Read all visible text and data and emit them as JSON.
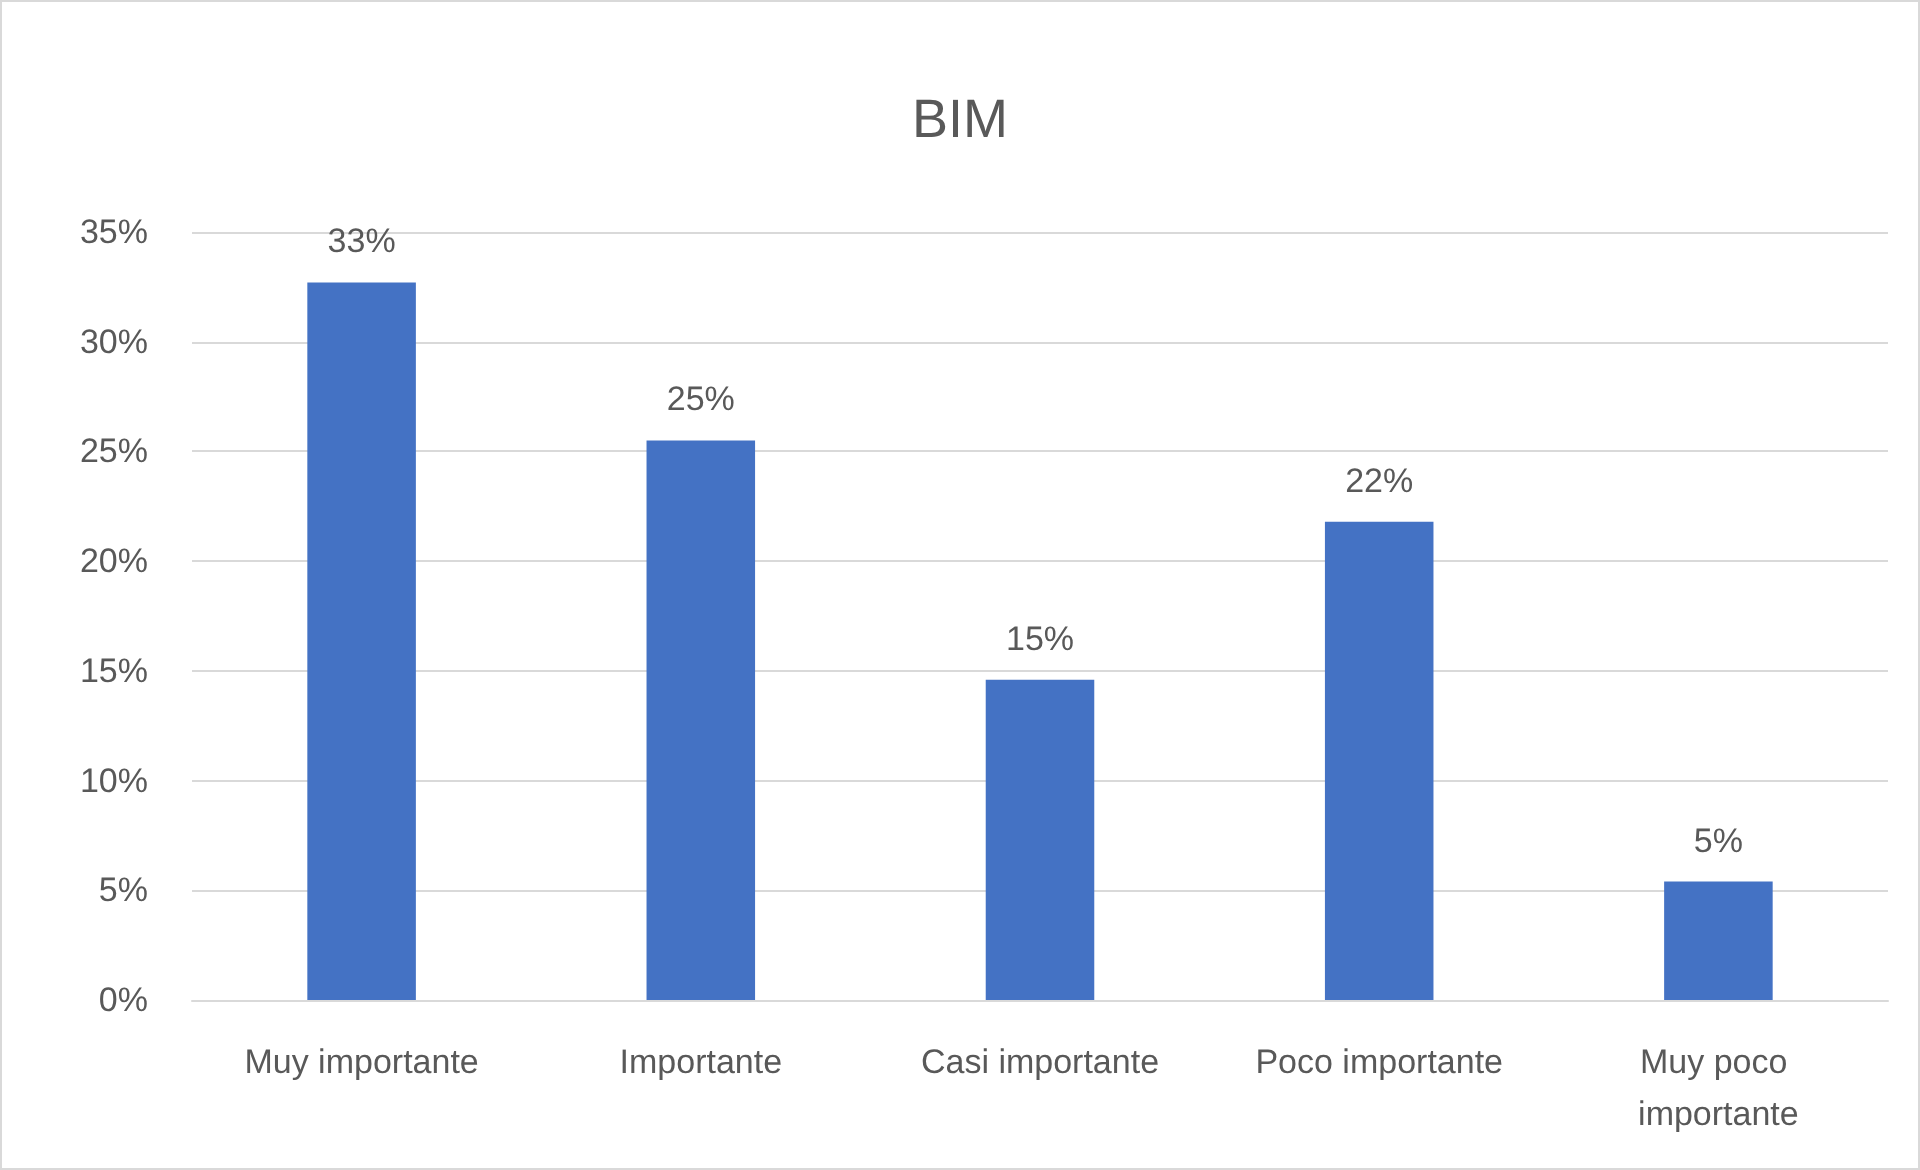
{
  "chart_data": {
    "type": "bar",
    "title": "BIM",
    "categories": [
      "Muy importante",
      "Importante",
      "Casi importante",
      "Poco importante",
      "Muy poco importante"
    ],
    "values": [
      32.7,
      25.5,
      14.6,
      21.8,
      5.4
    ],
    "value_labels": [
      "33%",
      "25%",
      "15%",
      "22%",
      "5%"
    ],
    "color": "#4472c4",
    "ylim": [
      0,
      35
    ],
    "yticks": [
      {
        "value": 0,
        "label": "0%"
      },
      {
        "value": 5,
        "label": "5%"
      },
      {
        "value": 10,
        "label": "10%"
      },
      {
        "value": 15,
        "label": "15%"
      },
      {
        "value": 20,
        "label": "20%"
      },
      {
        "value": 25,
        "label": "25%"
      },
      {
        "value": 30,
        "label": "30%"
      },
      {
        "value": 35,
        "label": "35%"
      }
    ],
    "grid": true
  }
}
